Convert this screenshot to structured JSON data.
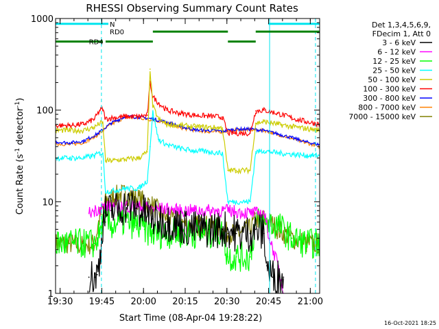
{
  "chart_data": {
    "type": "line",
    "title": "RHESSI Observing Summary Count Rates",
    "xlabel": "Start Time (08-Apr-04 19:28:22)",
    "ylabel": "Count Rate (s⁻¹ detector⁻¹)",
    "x_unit": "minutes after 19:28:22 UT",
    "xlim": [
      0,
      95
    ],
    "ylim": [
      1,
      1000
    ],
    "yscale": "log",
    "grid": false,
    "legend_position": "right",
    "legend_header": [
      "Det 1,3,4,5,6,9,",
      "FDecim 1, Att 0"
    ],
    "x_ticks": [
      {
        "x": 1.633,
        "label": "19:30"
      },
      {
        "x": 16.633,
        "label": "19:45"
      },
      {
        "x": 31.633,
        "label": "20:00"
      },
      {
        "x": 46.633,
        "label": "20:15"
      },
      {
        "x": 61.633,
        "label": "20:30"
      },
      {
        "x": 76.633,
        "label": "20:45"
      },
      {
        "x": 91.633,
        "label": "21:00"
      }
    ],
    "y_ticks": [
      {
        "y": 1,
        "label": "1"
      },
      {
        "y": 10,
        "label": "10"
      },
      {
        "y": 100,
        "label": "100"
      },
      {
        "y": 1000,
        "label": "1000"
      }
    ],
    "flags": [
      {
        "label": "N",
        "color": "#00e5ee",
        "y": 875,
        "segments": [
          [
            0,
            19
          ],
          [
            76.5,
            95
          ]
        ]
      },
      {
        "label": "RD0",
        "color": "#008000",
        "y": 720,
        "segments": [
          [
            35,
            62
          ],
          [
            72,
            95
          ]
        ]
      },
      {
        "label": "RD4",
        "color": "#008000",
        "y": 560,
        "segments": [
          [
            0,
            17
          ],
          [
            18,
            35
          ],
          [
            62,
            72
          ]
        ]
      }
    ],
    "vlines": [
      {
        "x": 16.5,
        "style": "dashed",
        "color": "#00e5ee"
      },
      {
        "x": 77,
        "style": "solid",
        "color": "#00e5ee"
      },
      {
        "x": 93.5,
        "style": "dashed",
        "color": "#00e5ee"
      }
    ],
    "series": [
      {
        "name": "3 - 6 keV",
        "color": "#000000",
        "x": [
          12,
          14,
          15,
          16,
          17,
          18,
          20,
          23,
          26,
          29,
          32,
          35,
          40,
          45,
          50,
          55,
          60,
          62,
          65,
          70,
          72,
          75,
          76,
          78,
          80,
          82
        ],
        "y": [
          1.5,
          1.5,
          1.6,
          2.5,
          6,
          7.5,
          8,
          8.5,
          9,
          8.5,
          7.5,
          6.5,
          6,
          5.5,
          5,
          5,
          5,
          5,
          4.5,
          4.5,
          5,
          4.5,
          2,
          1.5,
          1.5,
          1.5
        ]
      },
      {
        "name": "6 - 12 keV",
        "color": "#ff00ff",
        "x": [
          12,
          14,
          16,
          18,
          20,
          25,
          30,
          35,
          40,
          45,
          50,
          55,
          60,
          62,
          65,
          70,
          72,
          75,
          77,
          80,
          82
        ],
        "y": [
          7.5,
          8,
          8.5,
          9,
          9,
          9,
          8.8,
          8.5,
          8.3,
          8,
          8,
          8,
          8,
          8,
          7.8,
          7.5,
          7.5,
          7.5,
          4,
          2,
          1
        ]
      },
      {
        "name": "12 - 25 keV",
        "color": "#00ff00",
        "x": [
          0,
          5,
          10,
          14,
          16,
          17,
          18,
          20,
          23,
          26,
          29,
          32,
          35,
          40,
          45,
          50,
          55,
          60,
          62,
          65,
          70,
          72,
          75,
          80,
          85,
          90,
          95
        ],
        "y": [
          3.5,
          3.5,
          3.5,
          3.5,
          4.5,
          6,
          6,
          5.5,
          6,
          6,
          5.5,
          5,
          4.5,
          4.5,
          4.5,
          4.5,
          4.5,
          4.5,
          2.5,
          2.5,
          2.5,
          6,
          6,
          5.5,
          4,
          3.5,
          3.5
        ]
      },
      {
        "name": "25 - 50 keV",
        "color": "#00ffff",
        "x": [
          0,
          5,
          10,
          14,
          16,
          17,
          18,
          20,
          25,
          30,
          33,
          34,
          35,
          37,
          40,
          45,
          50,
          55,
          60,
          62,
          65,
          70,
          72,
          75,
          80,
          85,
          90,
          95
        ],
        "y": [
          30,
          30,
          30,
          32,
          34,
          34,
          13,
          13,
          14,
          14,
          17,
          40,
          95,
          48,
          42,
          38,
          36,
          35,
          34,
          10,
          10,
          10,
          35,
          36,
          34,
          33,
          32,
          32
        ]
      },
      {
        "name": "50 - 100 keV",
        "color": "#cccc00",
        "x": [
          0,
          5,
          10,
          14,
          16,
          17,
          18,
          20,
          25,
          30,
          33,
          34,
          35,
          37,
          40,
          45,
          50,
          55,
          60,
          62,
          65,
          70,
          72,
          75,
          80,
          85,
          90,
          95
        ],
        "y": [
          60,
          60,
          60,
          65,
          72,
          72,
          28,
          28,
          29,
          30,
          35,
          280,
          110,
          80,
          70,
          68,
          66,
          65,
          64,
          22,
          22,
          22,
          72,
          75,
          70,
          66,
          63,
          60
        ]
      },
      {
        "name": "100 - 300 keV",
        "color": "#ff0000",
        "x": [
          0,
          5,
          10,
          14,
          16,
          17,
          18,
          20,
          25,
          30,
          33,
          34,
          35,
          37,
          40,
          45,
          50,
          55,
          60,
          62,
          65,
          70,
          72,
          75,
          80,
          85,
          90,
          95
        ],
        "y": [
          68,
          68,
          70,
          80,
          100,
          102,
          80,
          82,
          85,
          85,
          88,
          200,
          140,
          120,
          100,
          92,
          88,
          86,
          84,
          56,
          56,
          56,
          98,
          100,
          92,
          82,
          75,
          70
        ]
      },
      {
        "name": "300 - 800 keV",
        "color": "#0000ff",
        "x": [
          0,
          5,
          10,
          15,
          20,
          25,
          30,
          35,
          40,
          45,
          50,
          55,
          60,
          65,
          70,
          75,
          80,
          85,
          90,
          95
        ],
        "y": [
          45,
          44,
          46,
          55,
          72,
          85,
          84,
          80,
          74,
          66,
          61,
          60,
          59,
          62,
          62,
          60,
          55,
          50,
          45,
          42
        ]
      },
      {
        "name": "800 - 7000 keV",
        "color": "#ff8000",
        "x": [
          0,
          5,
          10,
          15,
          20,
          25,
          30,
          35,
          40,
          45,
          50,
          55,
          60,
          65,
          70,
          75,
          80,
          85,
          90,
          95
        ],
        "y": [
          43,
          42,
          44,
          53,
          70,
          83,
          82,
          78,
          72,
          64,
          60,
          58,
          58,
          61,
          61,
          60,
          54,
          49,
          44,
          40
        ]
      },
      {
        "name": "7000 - 15000 keV",
        "color": "#808000",
        "x": [
          0,
          5,
          10,
          14,
          16,
          18,
          20,
          23,
          26,
          29,
          32,
          35,
          40,
          45,
          50,
          55,
          60,
          62,
          65,
          70,
          72,
          75,
          77,
          80,
          85,
          90,
          95
        ],
        "y": [
          3.5,
          3.5,
          3.3,
          3.5,
          7,
          10,
          11,
          12,
          12,
          11,
          10,
          9,
          6.5,
          6,
          5.5,
          5.5,
          5,
          4.5,
          4.5,
          5,
          6.5,
          6.5,
          6,
          5,
          4,
          3.5,
          3.5
        ]
      }
    ]
  },
  "footer": {
    "timestamp": "16-Oct-2021 18:25"
  }
}
